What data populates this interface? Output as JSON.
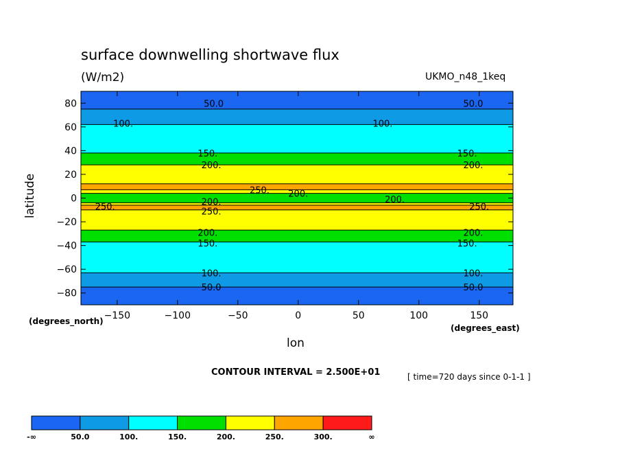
{
  "chart_data": {
    "type": "contour",
    "title": "surface downwelling shortwave flux",
    "units": "(W/m2)",
    "dataset": "UKMO_n48_1keq",
    "xlabel": "lon",
    "ylabel": "latitude",
    "x_units": "(degrees_east)",
    "y_units": "(degrees_north)",
    "xlim": [
      -180,
      178
    ],
    "ylim": [
      -90,
      90
    ],
    "x_ticks": [
      "-150",
      "-100",
      "-50",
      "0",
      "50",
      "100",
      "150"
    ],
    "y_ticks": [
      "80",
      "60",
      "40",
      "20",
      "0",
      "-20",
      "-40",
      "-60",
      "-80"
    ],
    "x_tick_values": [
      -150,
      -100,
      -50,
      0,
      50,
      100,
      150
    ],
    "y_tick_values": [
      80,
      60,
      40,
      20,
      0,
      -20,
      -40,
      -60,
      -80
    ],
    "contour_interval": "CONTOUR INTERVAL = 2.500E+01",
    "time_info": "[ time=720 days since 0-1-1 ]",
    "levels": [
      50,
      100,
      150,
      200,
      250,
      300
    ],
    "colorbar_labels": [
      "-∞",
      "50.0",
      "100.",
      "150.",
      "200.",
      "250.",
      "300.",
      "∞"
    ],
    "colors": [
      "#1a66f0",
      "#0f9ae6",
      "#00ffff",
      "#00e000",
      "#ffff00",
      "#ffa500",
      "#ff1a1a"
    ],
    "bands": [
      {
        "lat_from": -90,
        "lat_to": -75,
        "level": 0
      },
      {
        "lat_from": -75,
        "lat_to": -63,
        "level": 1
      },
      {
        "lat_from": -63,
        "lat_to": -37,
        "level": 2
      },
      {
        "lat_from": -37,
        "lat_to": -27,
        "level": 3
      },
      {
        "lat_from": -27,
        "lat_to": -10,
        "level": 4
      },
      {
        "lat_from": -10,
        "lat_to": -6,
        "level": 5
      },
      {
        "lat_from": -6,
        "lat_to": -4,
        "level": 4
      },
      {
        "lat_from": -4,
        "lat_to": 4,
        "level": 3
      },
      {
        "lat_from": 4,
        "lat_to": 7,
        "level": 4
      },
      {
        "lat_from": 7,
        "lat_to": 12,
        "level": 5
      },
      {
        "lat_from": 12,
        "lat_to": 28,
        "level": 4
      },
      {
        "lat_from": 28,
        "lat_to": 38,
        "level": 3
      },
      {
        "lat_from": 38,
        "lat_to": 62,
        "level": 2
      },
      {
        "lat_from": 62,
        "lat_to": 75,
        "level": 1
      },
      {
        "lat_from": 75,
        "lat_to": 90,
        "level": 0
      }
    ],
    "contour_labels": [
      {
        "text": "50.0",
        "lon": -70,
        "lat": 80
      },
      {
        "text": "50.0",
        "lon": 145,
        "lat": 80
      },
      {
        "text": "100.",
        "lon": -145,
        "lat": 63
      },
      {
        "text": "100.",
        "lon": 70,
        "lat": 63
      },
      {
        "text": "150.",
        "lon": -75,
        "lat": 38
      },
      {
        "text": "150.",
        "lon": 140,
        "lat": 38
      },
      {
        "text": "200.",
        "lon": -72,
        "lat": 28
      },
      {
        "text": "200.",
        "lon": 145,
        "lat": 28
      },
      {
        "text": "250.",
        "lon": -32,
        "lat": 7
      },
      {
        "text": "200.",
        "lon": 0,
        "lat": 4
      },
      {
        "text": "200.",
        "lon": -72,
        "lat": -3
      },
      {
        "text": "200.",
        "lon": 80,
        "lat": -1
      },
      {
        "text": "250.",
        "lon": -160,
        "lat": -7
      },
      {
        "text": "250.",
        "lon": -72,
        "lat": -11
      },
      {
        "text": "250.",
        "lon": 150,
        "lat": -7
      },
      {
        "text": "200.",
        "lon": -75,
        "lat": -29
      },
      {
        "text": "200.",
        "lon": 145,
        "lat": -29
      },
      {
        "text": "150.",
        "lon": -75,
        "lat": -38
      },
      {
        "text": "150.",
        "lon": 140,
        "lat": -38
      },
      {
        "text": "100.",
        "lon": -72,
        "lat": -63
      },
      {
        "text": "100.",
        "lon": 145,
        "lat": -63
      },
      {
        "text": "50.0",
        "lon": -72,
        "lat": -75
      },
      {
        "text": "50.0",
        "lon": 145,
        "lat": -75
      }
    ]
  }
}
